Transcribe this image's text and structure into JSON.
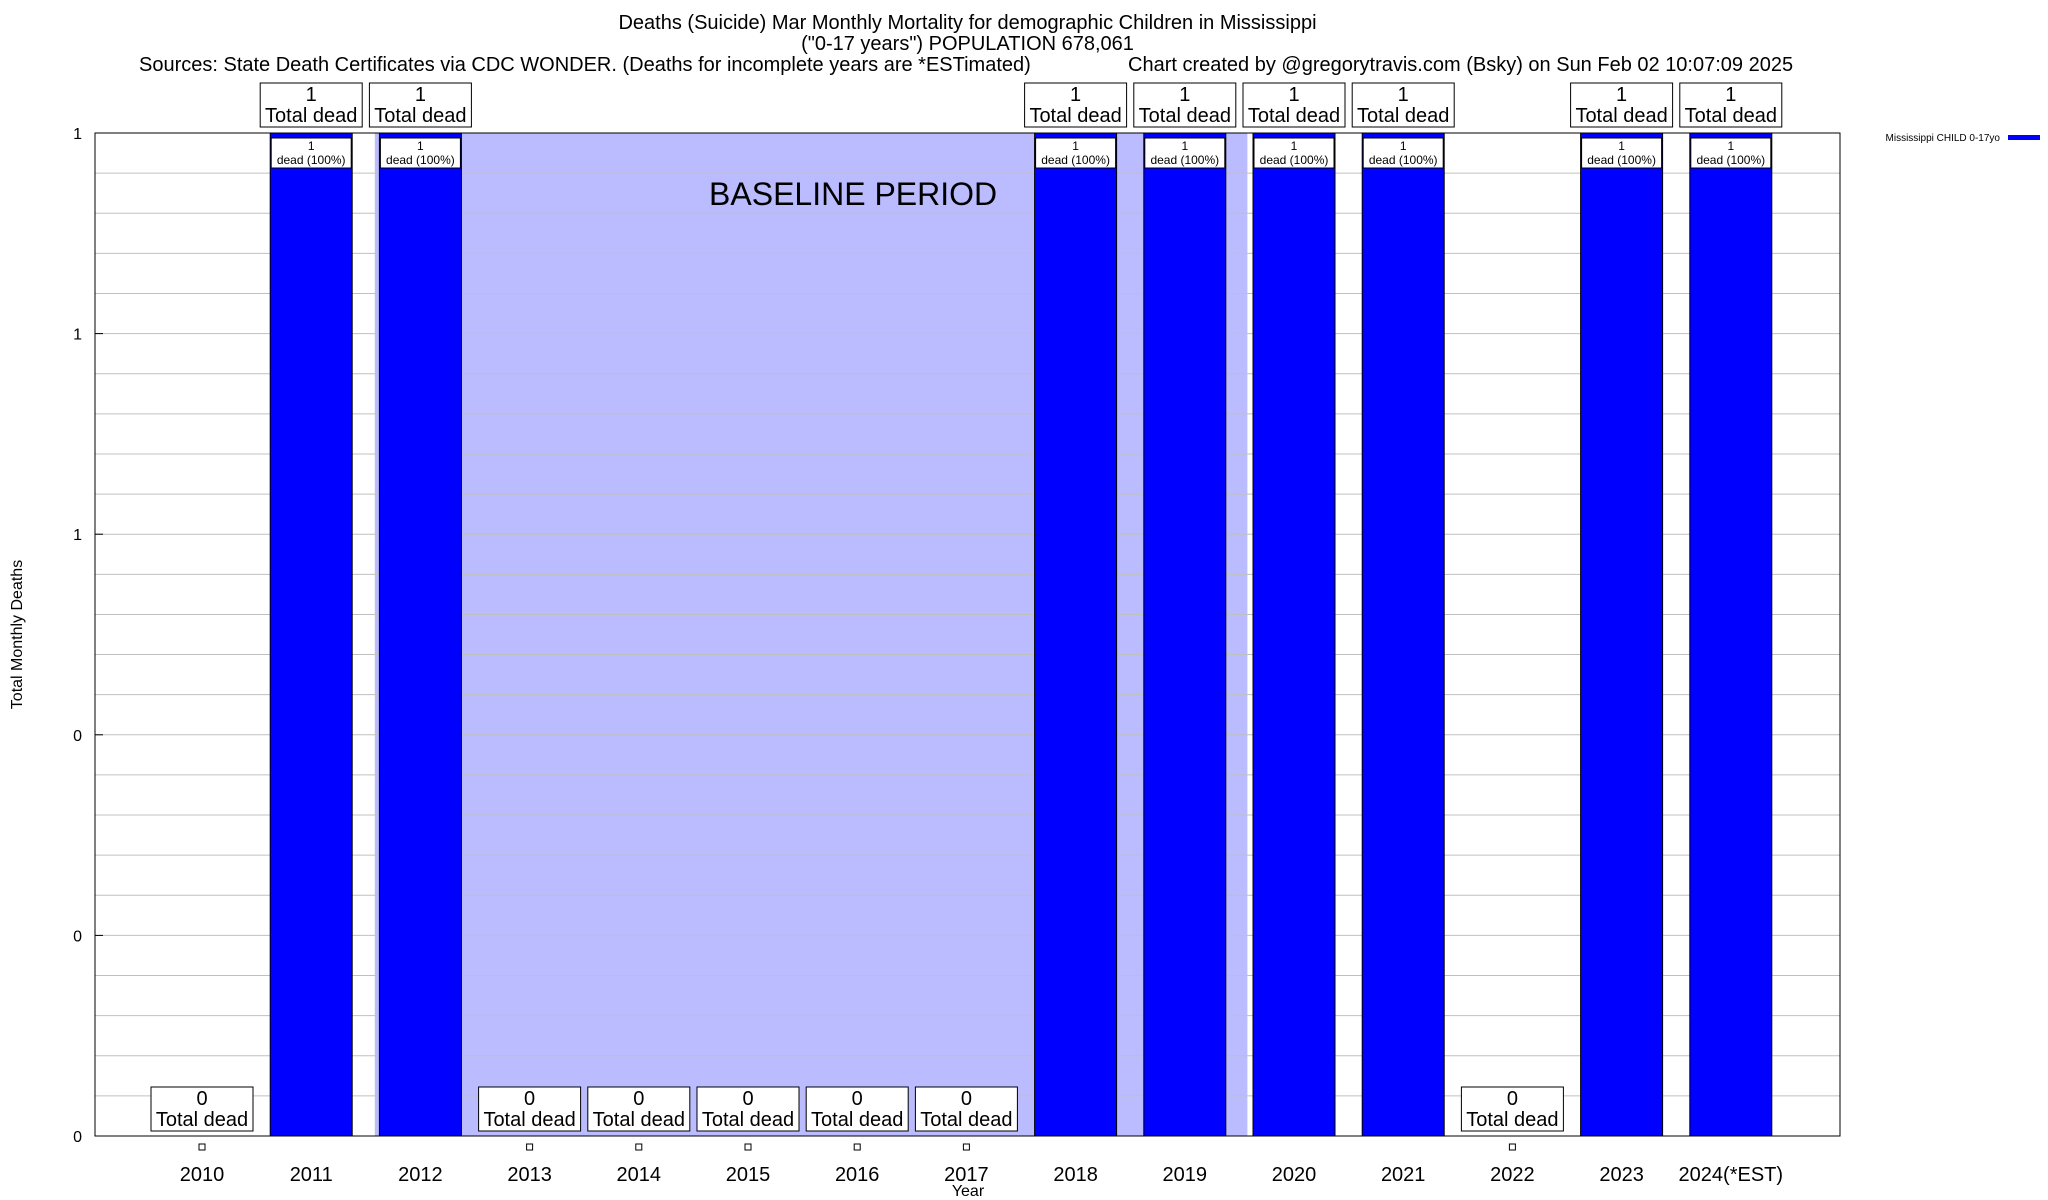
{
  "title": "Deaths (Suicide) Mar Monthly Mortality for demographic Children in Mississippi",
  "subtitle": "(\"0-17 years\") POPULATION 678,061",
  "sources": "Sources: State Death Certificates via CDC WONDER. (Deaths for incomplete years are *ESTimated)",
  "credit": "Chart created by @gregorytravis.com (Bsky) on Sun Feb 02 10:07:09 2025",
  "colors": {
    "bar": "#0000ff",
    "baseline_shade": "#bbbbff",
    "grid": "#c0c0c0"
  },
  "chart_data": {
    "type": "bar",
    "title": "Deaths (Suicide) Mar Monthly Mortality for demographic Children in Mississippi",
    "xlabel": "Year",
    "ylabel": "Total Monthly Deaths",
    "ylim": [
      0,
      1
    ],
    "y_tick_labels": [
      "0",
      "0",
      "0",
      "1",
      "1",
      "1"
    ],
    "grid": true,
    "legend_position": "top-right",
    "categories": [
      "2010",
      "2011",
      "2012",
      "2013",
      "2014",
      "2015",
      "2016",
      "2017",
      "2018",
      "2019",
      "2020",
      "2021",
      "2022",
      "2023",
      "2024(*EST)"
    ],
    "series": [
      {
        "name": "Mississippi CHILD 0-17yo",
        "values": [
          0,
          1,
          1,
          0,
          0,
          0,
          0,
          0,
          1,
          1,
          1,
          1,
          0,
          1,
          1
        ]
      }
    ],
    "total_labels": [
      "0",
      "1",
      "1",
      "0",
      "0",
      "0",
      "0",
      "0",
      "1",
      "1",
      "1",
      "1",
      "0",
      "1",
      "1"
    ],
    "total_label_suffix": "Total dead",
    "bar_labels": [
      "",
      "1\ndead (100%)",
      "1\ndead (100%)",
      "",
      "",
      "",
      "",
      "",
      "1\ndead (100%)",
      "1\ndead (100%)",
      "1\ndead (100%)",
      "1\ndead (100%)",
      "",
      "1\ndead (100%)",
      "1\ndead (100%)"
    ],
    "baseline_annotation": "BASELINE PERIOD",
    "baseline_range": [
      "2012",
      "2019"
    ]
  }
}
